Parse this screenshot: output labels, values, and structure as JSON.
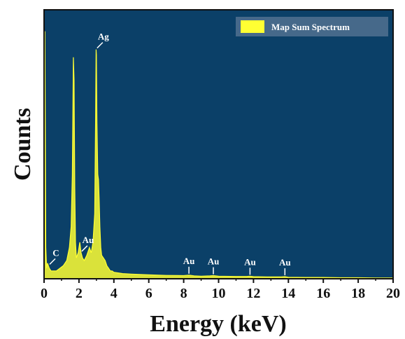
{
  "chart_data": {
    "type": "line",
    "title": "",
    "xlabel": "Energy (keV)",
    "ylabel": "Counts",
    "xlim": [
      0,
      20
    ],
    "x_ticks": [
      0,
      2,
      4,
      6,
      8,
      10,
      12,
      14,
      16,
      18,
      20
    ],
    "y_ticks_shown": false,
    "grid": false,
    "legend": {
      "position": "top-right",
      "entries": [
        {
          "name": "Map Sum Spectrum",
          "color": "#ffff33"
        }
      ]
    },
    "background_color": "#0b4068",
    "series": [
      {
        "name": "Map Sum Spectrum",
        "color": "#ffff33",
        "x": [
          0.0,
          0.05,
          0.1,
          0.15,
          0.2,
          0.25,
          0.3,
          0.4,
          0.5,
          0.7,
          0.9,
          1.1,
          1.3,
          1.45,
          1.55,
          1.62,
          1.68,
          1.72,
          1.76,
          1.8,
          1.85,
          1.95,
          2.05,
          2.12,
          2.2,
          2.3,
          2.45,
          2.6,
          2.7,
          2.8,
          2.9,
          2.95,
          2.98,
          3.0,
          3.03,
          3.08,
          3.12,
          3.16,
          3.2,
          3.25,
          3.3,
          3.4,
          3.5,
          3.6,
          3.7,
          3.8,
          3.9,
          4.0,
          4.5,
          5.0,
          6.0,
          7.0,
          8.0,
          8.3,
          8.6,
          9.0,
          9.5,
          9.7,
          10.0,
          11.0,
          11.6,
          11.8,
          12.0,
          13.0,
          13.6,
          13.8,
          14.0,
          15.0,
          16.0,
          17.0,
          18.0,
          19.0,
          20.0
        ],
        "y": [
          3,
          95,
          12,
          4,
          6,
          5,
          4,
          3,
          3,
          3,
          4,
          5,
          7,
          12,
          20,
          40,
          85,
          76,
          35,
          14,
          8,
          10,
          14,
          10,
          8,
          7,
          9,
          12,
          10,
          14,
          25,
          60,
          88,
          86,
          60,
          40,
          38,
          30,
          20,
          12,
          9,
          8,
          7,
          5,
          4,
          3,
          3,
          2.5,
          2,
          1.8,
          1.5,
          1.3,
          1.2,
          1.4,
          1.1,
          1.0,
          1.1,
          1.2,
          1.0,
          0.9,
          0.9,
          1.0,
          0.8,
          0.7,
          0.7,
          0.8,
          0.6,
          0.5,
          0.5,
          0.4,
          0.4,
          0.3,
          0.3
        ]
      }
    ],
    "ylim": [
      0,
      100
    ],
    "annotations": [
      {
        "text": "Ag",
        "x": 3.0,
        "y": 88
      },
      {
        "text": "C",
        "x": 0.28,
        "y": 5
      },
      {
        "text": "Au",
        "x": 2.12,
        "y": 10
      },
      {
        "text": "Au",
        "x": 8.3,
        "y": 1.4
      },
      {
        "text": "Au",
        "x": 9.7,
        "y": 1.2
      },
      {
        "text": "Au",
        "x": 11.8,
        "y": 1.0
      },
      {
        "text": "Au",
        "x": 13.8,
        "y": 0.8
      }
    ]
  }
}
